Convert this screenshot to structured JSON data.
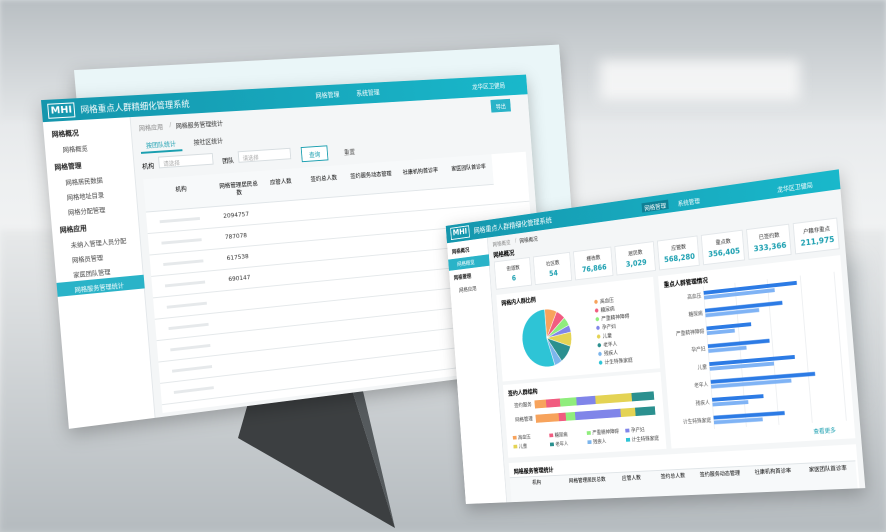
{
  "back": {
    "logo": "MHI",
    "title": "网格重点人群精细化管理系统",
    "nav": [
      "网格管理",
      "系统管理"
    ],
    "user": "龙华区卫健局",
    "menu": [
      {
        "group": "网格概况",
        "items": [
          "网格概览"
        ]
      },
      {
        "group": "网格管理",
        "items": [
          "网格居民数据",
          "网格地址目录",
          "网格分配管理"
        ]
      },
      {
        "group": "网格应用",
        "items": [
          "未纳入管理人员分配",
          "网格员管理",
          "家医团队管理",
          "网格服务管理统计"
        ]
      }
    ],
    "breadcrumb": [
      "网格应用",
      "网格服务管理统计"
    ],
    "tabs": [
      "按团队统计",
      "按社区统计"
    ],
    "filters": {
      "org_label": "机构",
      "org_placeholder": "请选择",
      "team_label": "团队",
      "team_placeholder": "请选择",
      "search": "查询",
      "reset": "重置"
    },
    "export": "导出",
    "table": {
      "headers": [
        "机构",
        "网格管理居民总数",
        "应管人数",
        "签约总人数",
        "签约服务动态管理",
        "社康机构首诊率",
        "家医团队首诊率"
      ],
      "rows": [
        "2094757",
        "787078",
        "617538",
        "690147"
      ]
    }
  },
  "front": {
    "logo": "MHI",
    "title": "网格重点人群精细化管理系统",
    "nav": [
      "网格管理",
      "系统管理"
    ],
    "user": "龙华区卫健局",
    "menu": [
      "网格概况",
      "网格概览",
      "网格管理",
      "网格应用"
    ],
    "breadcrumb": [
      "网格概览",
      "网格概况"
    ],
    "section": "网格概况",
    "stats": [
      {
        "label": "街道数",
        "value": "6"
      },
      {
        "label": "社区数",
        "value": "54"
      },
      {
        "label": "楼栋数",
        "value": "76,866"
      },
      {
        "label": "居民数",
        "value": "3,029"
      },
      {
        "label": "应管数",
        "value": "568,280"
      },
      {
        "label": "重点数",
        "value": "356,405"
      },
      {
        "label": "已签约数",
        "value": "333,366"
      },
      {
        "label": "户籍非重点",
        "value": "211,975"
      }
    ],
    "pie": {
      "title": "网格内人群比例",
      "slices": [
        {
          "name": "高血压",
          "color": "#f7a35c",
          "value": 8
        },
        {
          "name": "糖尿病",
          "color": "#f15c80",
          "value": 6
        },
        {
          "name": "严重精神障碍",
          "color": "#90ed7d",
          "value": 5
        },
        {
          "name": "孕产妇",
          "color": "#8085e9",
          "value": 4
        },
        {
          "name": "儿童",
          "color": "#e4d354",
          "value": 8
        },
        {
          "name": "老年人",
          "color": "#2b908f",
          "value": 10
        },
        {
          "name": "残疾人",
          "color": "#7cb5ec",
          "value": 5
        },
        {
          "name": "计生特殊家庭",
          "color": "#2ec4d6",
          "value": 54
        }
      ]
    },
    "hbar": {
      "title": "重点人群管理情况",
      "max": 100,
      "colors": [
        "#2c7be5",
        "#7fb3f5"
      ],
      "categories": [
        "高血压",
        "糖尿病",
        "严重精神障碍",
        "孕产妇",
        "儿童",
        "老年人",
        "残疾人",
        "计生特殊家庭"
      ],
      "series": [
        [
          72,
          60,
          35,
          48,
          66,
          80,
          40,
          55
        ],
        [
          55,
          42,
          22,
          30,
          50,
          62,
          28,
          38
        ]
      ],
      "more": "查看更多"
    },
    "stack": {
      "title": "签约人群结构",
      "rows": [
        {
          "name": "签约服务",
          "values": [
            10,
            12,
            14,
            16,
            30,
            18
          ]
        },
        {
          "name": "网格管理",
          "values": [
            20,
            6,
            8,
            38,
            12,
            16
          ]
        }
      ]
    },
    "table": {
      "title": "网格服务管理统计",
      "headers": [
        "机构",
        "网格管理居民总数",
        "应管人数",
        "签约总人数",
        "签约服务动态管理",
        "社康机构首诊率",
        "家医团队首诊率"
      ]
    }
  }
}
